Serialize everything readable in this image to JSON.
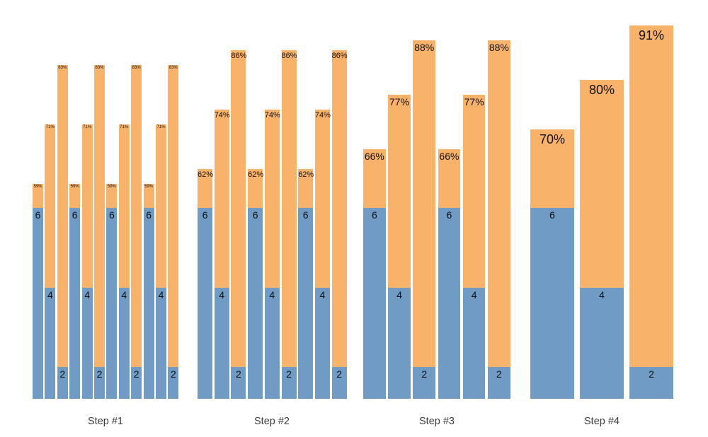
{
  "chart_data": {
    "type": "bar",
    "variant": "stacked-percentage-bars",
    "grid": false,
    "legend": false,
    "colors": {
      "base_segment": "#6f9bc4",
      "extension_segment": "#f9b269",
      "bar_label": "#111111",
      "axis_label": "#3b3b3b",
      "background": "#ffffff"
    },
    "categories": [
      "Step #1",
      "Step #2",
      "Step #3",
      "Step #4"
    ],
    "groups": [
      {
        "label": "Step #1",
        "bars": [
          {
            "value": 6,
            "pct": 59
          },
          {
            "value": 4,
            "pct": 71
          },
          {
            "value": 2,
            "pct": 83
          },
          {
            "value": 6,
            "pct": 59
          },
          {
            "value": 4,
            "pct": 71
          },
          {
            "value": 2,
            "pct": 83
          },
          {
            "value": 6,
            "pct": 59
          },
          {
            "value": 4,
            "pct": 71
          },
          {
            "value": 2,
            "pct": 83
          },
          {
            "value": 6,
            "pct": 59
          },
          {
            "value": 4,
            "pct": 71
          },
          {
            "value": 2,
            "pct": 83
          }
        ]
      },
      {
        "label": "Step #2",
        "bars": [
          {
            "value": 6,
            "pct": 62
          },
          {
            "value": 4,
            "pct": 74
          },
          {
            "value": 2,
            "pct": 86
          },
          {
            "value": 6,
            "pct": 62
          },
          {
            "value": 4,
            "pct": 74
          },
          {
            "value": 2,
            "pct": 86
          },
          {
            "value": 6,
            "pct": 62
          },
          {
            "value": 4,
            "pct": 74
          },
          {
            "value": 2,
            "pct": 86
          }
        ]
      },
      {
        "label": "Step #3",
        "bars": [
          {
            "value": 6,
            "pct": 66
          },
          {
            "value": 4,
            "pct": 77
          },
          {
            "value": 2,
            "pct": 88
          },
          {
            "value": 6,
            "pct": 66
          },
          {
            "value": 4,
            "pct": 77
          },
          {
            "value": 2,
            "pct": 88
          }
        ]
      },
      {
        "label": "Step #4",
        "bars": [
          {
            "value": 6,
            "pct": 70
          },
          {
            "value": 4,
            "pct": 80
          },
          {
            "value": 2,
            "pct": 91
          }
        ]
      }
    ],
    "pct_suffix": "%"
  }
}
